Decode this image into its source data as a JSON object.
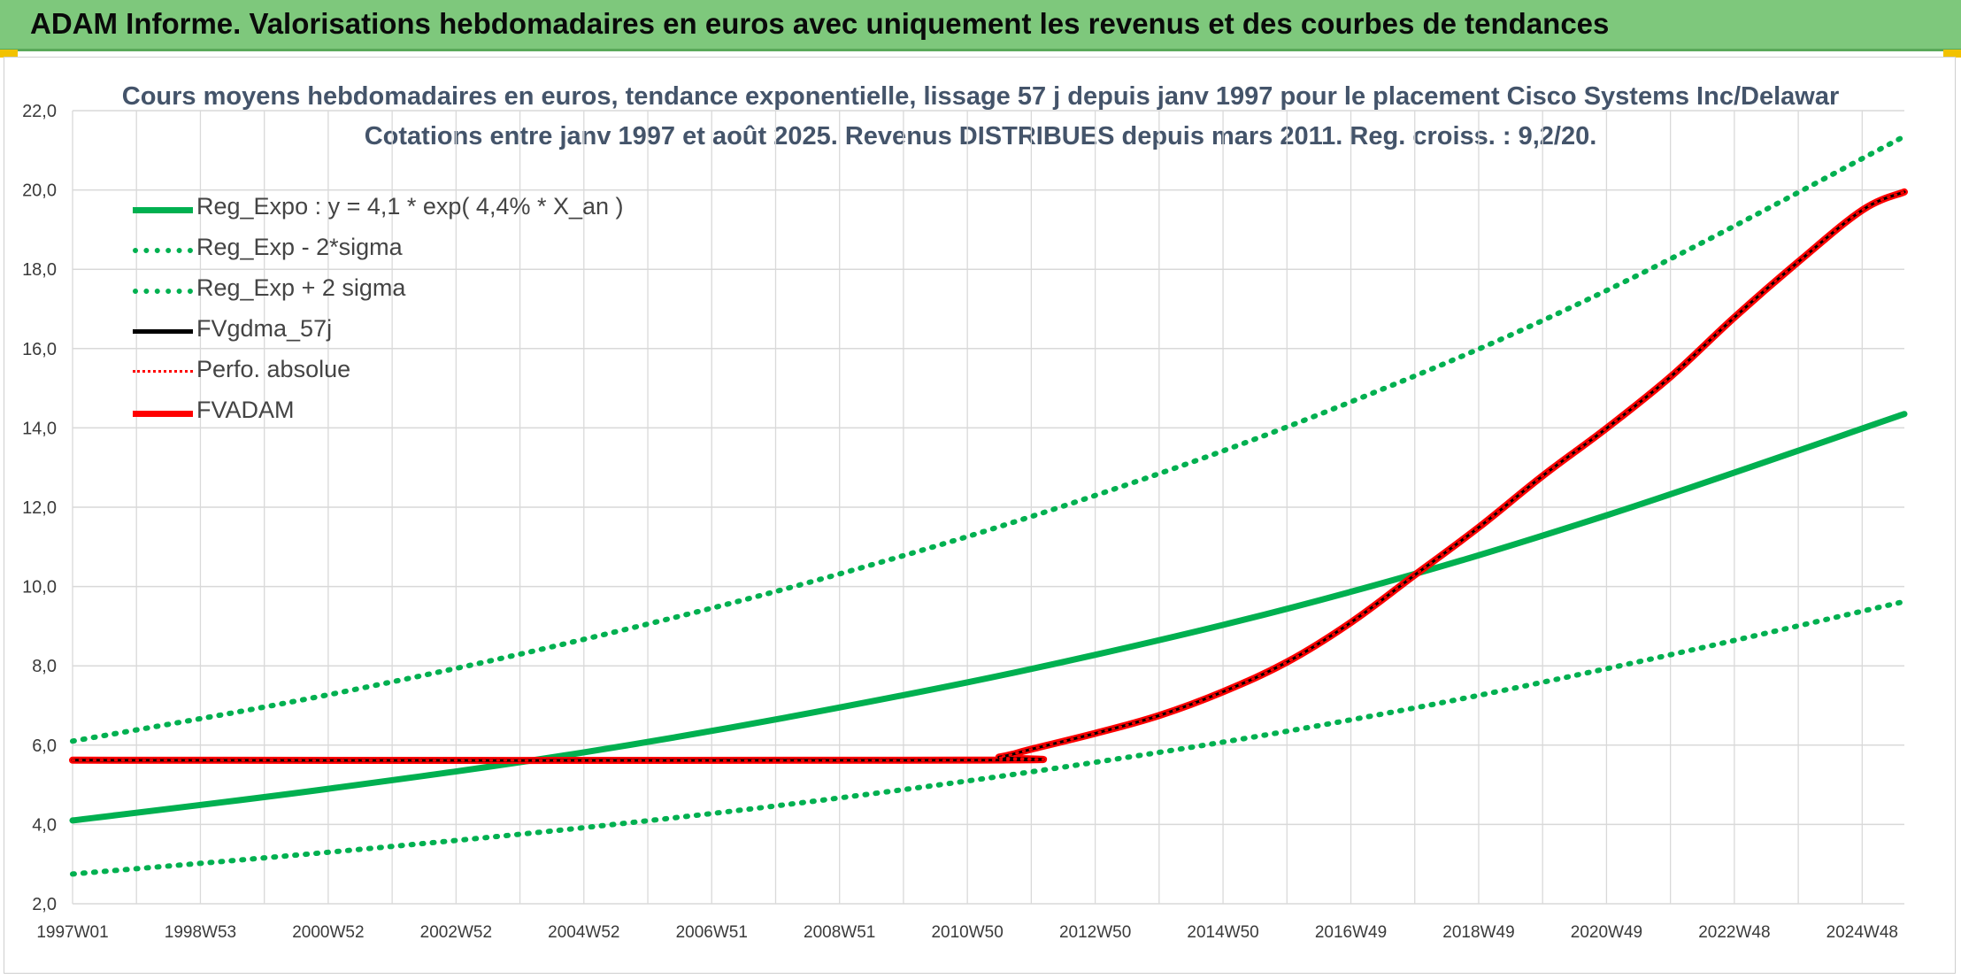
{
  "header": {
    "title": "ADAM Informe. Valorisations hebdomadaires en euros avec uniquement les revenus et des courbes de tendances"
  },
  "colors": {
    "banner": "#7ec87c",
    "green": "#00b050",
    "red": "#ff0000",
    "black": "#000000",
    "grid": "#d9d9d9"
  },
  "chart_data": {
    "type": "line",
    "title": "Cours moyens hebdomadaires en euros, tendance exponentielle, lissage 57 j depuis janv 1997 pour le placement Cisco Systems Inc/Delawar",
    "subtitle": "Cotations entre janv 1997 et août 2025. Revenus DISTRIBUES depuis mars 2011. Reg. croiss. : 9,2/20.",
    "ylim": [
      2.0,
      22.0
    ],
    "y_ticks": [
      "2,0",
      "4,0",
      "6,0",
      "8,0",
      "10,0",
      "12,0",
      "14,0",
      "16,0",
      "18,0",
      "20,0",
      "22,0"
    ],
    "x_ticks": [
      "1997W01",
      "1998W53",
      "2000W52",
      "2002W52",
      "2004W52",
      "2006W51",
      "2008W51",
      "2010W50",
      "2012W50",
      "2014W50",
      "2016W49",
      "2018W49",
      "2020W49",
      "2022W48",
      "2024W48"
    ],
    "x_range_years": [
      1997.0,
      2025.65
    ],
    "legend_position": "top-left",
    "grid": true,
    "series": [
      {
        "name": "Reg_Expo : y = 4,1 * exp( 4,4% *  X_an )",
        "color": "#00b050",
        "style": "solid",
        "x": [
          1997.0,
          2001.0,
          2005.0,
          2009.0,
          2013.0,
          2017.0,
          2021.0,
          2025.65
        ],
        "y": [
          4.1,
          4.9,
          5.82,
          6.95,
          8.28,
          9.87,
          11.8,
          14.35
        ]
      },
      {
        "name": "Reg_Exp - 2*sigma",
        "color": "#00b050",
        "style": "dotted",
        "x": [
          1997.0,
          2001.0,
          2005.0,
          2009.0,
          2013.0,
          2017.0,
          2021.0,
          2025.65
        ],
        "y": [
          2.75,
          3.3,
          3.92,
          4.67,
          5.57,
          6.64,
          7.93,
          9.62
        ]
      },
      {
        "name": "Reg_Exp + 2 sigma",
        "color": "#00b050",
        "style": "dotted",
        "x": [
          1997.0,
          2001.0,
          2005.0,
          2009.0,
          2013.0,
          2017.0,
          2021.0,
          2025.65
        ],
        "y": [
          6.1,
          7.27,
          8.67,
          10.32,
          12.3,
          14.66,
          17.47,
          21.35
        ]
      },
      {
        "name": "FVgdma_57j",
        "color": "#000000",
        "style": "solid",
        "x": [
          1997.0,
          2010.9,
          2011.5,
          2012.0,
          2013.0,
          2014.0,
          2015.0,
          2016.0,
          2017.0,
          2018.0,
          2019.0,
          2020.0,
          2021.0,
          2022.0,
          2023.0,
          2024.0,
          2025.0,
          2025.65
        ],
        "y": [
          5.62,
          5.62,
          5.7,
          5.9,
          6.3,
          6.75,
          7.35,
          8.1,
          9.1,
          10.3,
          11.5,
          12.8,
          14.0,
          15.3,
          16.8,
          18.2,
          19.5,
          19.95
        ]
      },
      {
        "name": "Perfo. absolue",
        "color": "#ff0000",
        "style": "dotted",
        "x": [
          1997.0,
          2010.9,
          2011.5,
          2012.0,
          2013.0,
          2014.0,
          2015.0,
          2016.0,
          2017.0,
          2018.0,
          2019.0,
          2020.0,
          2021.0,
          2022.0,
          2023.0,
          2024.0,
          2025.0,
          2025.65
        ],
        "y": [
          5.62,
          5.62,
          5.7,
          5.9,
          6.3,
          6.75,
          7.35,
          8.1,
          9.1,
          10.3,
          11.5,
          12.8,
          14.0,
          15.3,
          16.8,
          18.2,
          19.5,
          19.95
        ]
      },
      {
        "name": "FVADAM",
        "color": "#ff0000",
        "style": "solid",
        "x": [
          1997.0,
          2010.9,
          2011.5,
          2012.0,
          2013.0,
          2014.0,
          2015.0,
          2016.0,
          2017.0,
          2018.0,
          2019.0,
          2020.0,
          2021.0,
          2022.0,
          2023.0,
          2024.0,
          2025.0,
          2025.65
        ],
        "y": [
          5.62,
          5.62,
          5.7,
          5.9,
          6.3,
          6.75,
          7.35,
          8.1,
          9.1,
          10.3,
          11.5,
          12.8,
          14.0,
          15.3,
          16.8,
          18.2,
          19.5,
          19.95
        ]
      }
    ]
  }
}
